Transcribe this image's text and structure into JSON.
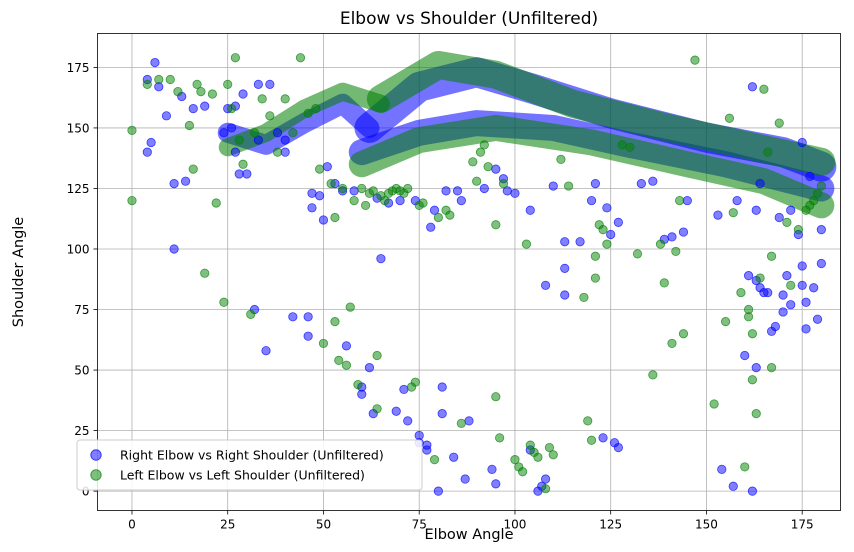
{
  "chart_data": {
    "type": "scatter",
    "title": "Elbow vs Shoulder (Unfiltered)",
    "xlabel": "Elbow Angle",
    "ylabel": "Shoulder Angle",
    "xlim": [
      -9,
      185
    ],
    "ylim": [
      -8,
      189
    ],
    "xticks": [
      0,
      25,
      50,
      75,
      100,
      125,
      150,
      175
    ],
    "yticks": [
      0,
      25,
      50,
      75,
      100,
      125,
      150,
      175
    ],
    "grid": true,
    "legend": "lower-left",
    "series": [
      {
        "name": "Right Elbow vs Right Shoulder (Unfiltered)",
        "color": "#0000ff",
        "points": [
          [
            4,
            170
          ],
          [
            4,
            140
          ],
          [
            5,
            144
          ],
          [
            6,
            177
          ],
          [
            7,
            167
          ],
          [
            9,
            155
          ],
          [
            11,
            127
          ],
          [
            11,
            100
          ],
          [
            13,
            163
          ],
          [
            14,
            128
          ],
          [
            16,
            158
          ],
          [
            19,
            159
          ],
          [
            24,
            148
          ],
          [
            25,
            158
          ],
          [
            26,
            150
          ],
          [
            27,
            159
          ],
          [
            27,
            140
          ],
          [
            29,
            164
          ],
          [
            28,
            131
          ],
          [
            30,
            131
          ],
          [
            32,
            75
          ],
          [
            33,
            168
          ],
          [
            33,
            145
          ],
          [
            35,
            58
          ],
          [
            36,
            168
          ],
          [
            38,
            148
          ],
          [
            40,
            145
          ],
          [
            40,
            140
          ],
          [
            42,
            72
          ],
          [
            46,
            72
          ],
          [
            46,
            64
          ],
          [
            47,
            117
          ],
          [
            47,
            123
          ],
          [
            49,
            122
          ],
          [
            50,
            112
          ],
          [
            51,
            134
          ],
          [
            53,
            127
          ],
          [
            55,
            124
          ],
          [
            56,
            60
          ],
          [
            58,
            124
          ],
          [
            60,
            40
          ],
          [
            60,
            43
          ],
          [
            62,
            51
          ],
          [
            63,
            32
          ],
          [
            64,
            121
          ],
          [
            65,
            96
          ],
          [
            67,
            119
          ],
          [
            69,
            33
          ],
          [
            70,
            120
          ],
          [
            71,
            42
          ],
          [
            72,
            29
          ],
          [
            74,
            120
          ],
          [
            75,
            20
          ],
          [
            75,
            23
          ],
          [
            77,
            17
          ],
          [
            77,
            19
          ],
          [
            78,
            109
          ],
          [
            79,
            116
          ],
          [
            80,
            0
          ],
          [
            81,
            43
          ],
          [
            81,
            32
          ],
          [
            82,
            124
          ],
          [
            84,
            14
          ],
          [
            85,
            124
          ],
          [
            86,
            120
          ],
          [
            87,
            5
          ],
          [
            88,
            29
          ],
          [
            92,
            125
          ],
          [
            94,
            9
          ],
          [
            95,
            3
          ],
          [
            95,
            133
          ],
          [
            97,
            129
          ],
          [
            98,
            124
          ],
          [
            100,
            123
          ],
          [
            104,
            17
          ],
          [
            104,
            116
          ],
          [
            106,
            0
          ],
          [
            107,
            2
          ],
          [
            108,
            5
          ],
          [
            108,
            85
          ],
          [
            110,
            126
          ],
          [
            113,
            103
          ],
          [
            113,
            81
          ],
          [
            113,
            92
          ],
          [
            117,
            103
          ],
          [
            120,
            120
          ],
          [
            121,
            127
          ],
          [
            123,
            22
          ],
          [
            124,
            117
          ],
          [
            125,
            106
          ],
          [
            126,
            20
          ],
          [
            127,
            111
          ],
          [
            127,
            18
          ],
          [
            133,
            127
          ],
          [
            136,
            128
          ],
          [
            139,
            104
          ],
          [
            141,
            105
          ],
          [
            144,
            107
          ],
          [
            145,
            120
          ],
          [
            153,
            114
          ],
          [
            154,
            9
          ],
          [
            157,
            2
          ],
          [
            158,
            120
          ],
          [
            160,
            56
          ],
          [
            161,
            89
          ],
          [
            162,
            0
          ],
          [
            162,
            167
          ],
          [
            163,
            116
          ],
          [
            163,
            51
          ],
          [
            163,
            87
          ],
          [
            164,
            127
          ],
          [
            164,
            84
          ],
          [
            165,
            82
          ],
          [
            166,
            82
          ],
          [
            167,
            66
          ],
          [
            168,
            68
          ],
          [
            169,
            113
          ],
          [
            170,
            74
          ],
          [
            170,
            81
          ],
          [
            171,
            89
          ],
          [
            172,
            77
          ],
          [
            172,
            116
          ],
          [
            174,
            106
          ],
          [
            175,
            85
          ],
          [
            175,
            93
          ],
          [
            175,
            144
          ],
          [
            176,
            78
          ],
          [
            176,
            67
          ],
          [
            177,
            130
          ],
          [
            178,
            84
          ],
          [
            179,
            71
          ],
          [
            180,
            108
          ],
          [
            180,
            94
          ]
        ]
      },
      {
        "name": "Left Elbow vs Left Shoulder (Unfiltered)",
        "color": "#008000",
        "points": [
          [
            0,
            120
          ],
          [
            0,
            149
          ],
          [
            4,
            168
          ],
          [
            7,
            170
          ],
          [
            10,
            170
          ],
          [
            12,
            165
          ],
          [
            15,
            151
          ],
          [
            16,
            133
          ],
          [
            17,
            168
          ],
          [
            18,
            165
          ],
          [
            19,
            90
          ],
          [
            21,
            164
          ],
          [
            22,
            119
          ],
          [
            24,
            78
          ],
          [
            25,
            168
          ],
          [
            26,
            158
          ],
          [
            27,
            179
          ],
          [
            28,
            145
          ],
          [
            29,
            135
          ],
          [
            31,
            73
          ],
          [
            32,
            148
          ],
          [
            34,
            162
          ],
          [
            36,
            155
          ],
          [
            38,
            140
          ],
          [
            40,
            162
          ],
          [
            42,
            148
          ],
          [
            44,
            179
          ],
          [
            46,
            156
          ],
          [
            48,
            158
          ],
          [
            49,
            133
          ],
          [
            50,
            61
          ],
          [
            52,
            127
          ],
          [
            53,
            113
          ],
          [
            53,
            70
          ],
          [
            54,
            54
          ],
          [
            55,
            125
          ],
          [
            56,
            52
          ],
          [
            57,
            76
          ],
          [
            58,
            120
          ],
          [
            59,
            44
          ],
          [
            60,
            125
          ],
          [
            61,
            118
          ],
          [
            62,
            123
          ],
          [
            63,
            124
          ],
          [
            64,
            56
          ],
          [
            64,
            34
          ],
          [
            65,
            122
          ],
          [
            66,
            120
          ],
          [
            67,
            123
          ],
          [
            68,
            124
          ],
          [
            69,
            125
          ],
          [
            70,
            124
          ],
          [
            71,
            123
          ],
          [
            72,
            125
          ],
          [
            73,
            43
          ],
          [
            74,
            45
          ],
          [
            75,
            118
          ],
          [
            76,
            119
          ],
          [
            79,
            13
          ],
          [
            80,
            113
          ],
          [
            82,
            116
          ],
          [
            83,
            114
          ],
          [
            86,
            28
          ],
          [
            89,
            136
          ],
          [
            90,
            128
          ],
          [
            91,
            140
          ],
          [
            92,
            143
          ],
          [
            93,
            134
          ],
          [
            95,
            39
          ],
          [
            95,
            110
          ],
          [
            96,
            22
          ],
          [
            97,
            127
          ],
          [
            100,
            13
          ],
          [
            101,
            10
          ],
          [
            102,
            8
          ],
          [
            103,
            102
          ],
          [
            104,
            19
          ],
          [
            105,
            16
          ],
          [
            106,
            14
          ],
          [
            108,
            1
          ],
          [
            109,
            18
          ],
          [
            110,
            15
          ],
          [
            112,
            137
          ],
          [
            114,
            126
          ],
          [
            118,
            80
          ],
          [
            119,
            29
          ],
          [
            120,
            21
          ],
          [
            121,
            97
          ],
          [
            121,
            88
          ],
          [
            122,
            110
          ],
          [
            123,
            108
          ],
          [
            124,
            102
          ],
          [
            128,
            143
          ],
          [
            130,
            142
          ],
          [
            132,
            98
          ],
          [
            136,
            48
          ],
          [
            138,
            102
          ],
          [
            139,
            86
          ],
          [
            141,
            61
          ],
          [
            142,
            99
          ],
          [
            143,
            120
          ],
          [
            144,
            65
          ],
          [
            147,
            178
          ],
          [
            152,
            36
          ],
          [
            155,
            70
          ],
          [
            156,
            154
          ],
          [
            157,
            115
          ],
          [
            159,
            82
          ],
          [
            160,
            10
          ],
          [
            161,
            75
          ],
          [
            161,
            72
          ],
          [
            162,
            65
          ],
          [
            162,
            46
          ],
          [
            163,
            32
          ],
          [
            164,
            88
          ],
          [
            165,
            166
          ],
          [
            166,
            140
          ],
          [
            167,
            97
          ],
          [
            167,
            51
          ],
          [
            169,
            152
          ],
          [
            171,
            111
          ],
          [
            172,
            85
          ],
          [
            174,
            108
          ],
          [
            176,
            116
          ],
          [
            177,
            118
          ],
          [
            178,
            120
          ],
          [
            179,
            123
          ],
          [
            180,
            126
          ]
        ]
      }
    ]
  }
}
